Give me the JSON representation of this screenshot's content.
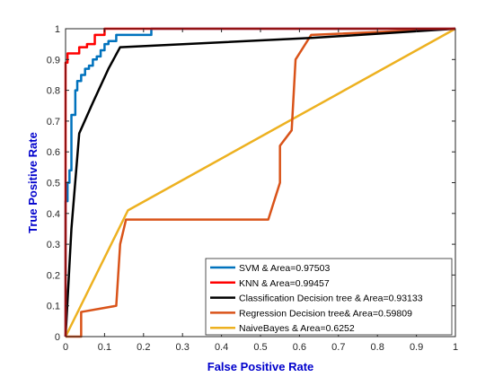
{
  "chart_data": {
    "type": "line",
    "title": "",
    "xlabel": "False Positive Rate",
    "ylabel": "True Positive Rate",
    "xlim": [
      0,
      1
    ],
    "ylim": [
      0,
      1
    ],
    "xticks": [
      "0",
      "0.1",
      "0.2",
      "0.3",
      "0.4",
      "0.5",
      "0.6",
      "0.7",
      "0.8",
      "0.9",
      "1"
    ],
    "yticks": [
      "0",
      "0.1",
      "0.2",
      "0.3",
      "0.4",
      "0.5",
      "0.6",
      "0.7",
      "0.8",
      "0.9",
      "1"
    ],
    "grid": false,
    "legend_position": "bottom-right",
    "series": [
      {
        "name": "SVM & Area=0.97503",
        "color": "#0072BD",
        "points": [
          [
            0,
            0
          ],
          [
            0,
            0.44
          ],
          [
            0.005,
            0.44
          ],
          [
            0.005,
            0.5
          ],
          [
            0.01,
            0.5
          ],
          [
            0.01,
            0.54
          ],
          [
            0.015,
            0.54
          ],
          [
            0.015,
            0.72
          ],
          [
            0.025,
            0.72
          ],
          [
            0.025,
            0.8
          ],
          [
            0.03,
            0.8
          ],
          [
            0.03,
            0.83
          ],
          [
            0.04,
            0.83
          ],
          [
            0.04,
            0.85
          ],
          [
            0.05,
            0.85
          ],
          [
            0.05,
            0.87
          ],
          [
            0.06,
            0.87
          ],
          [
            0.06,
            0.88
          ],
          [
            0.07,
            0.88
          ],
          [
            0.07,
            0.9
          ],
          [
            0.08,
            0.9
          ],
          [
            0.08,
            0.91
          ],
          [
            0.09,
            0.91
          ],
          [
            0.09,
            0.93
          ],
          [
            0.1,
            0.93
          ],
          [
            0.1,
            0.95
          ],
          [
            0.11,
            0.95
          ],
          [
            0.11,
            0.96
          ],
          [
            0.13,
            0.96
          ],
          [
            0.13,
            0.98
          ],
          [
            0.22,
            0.98
          ],
          [
            0.22,
            1
          ],
          [
            1,
            1
          ]
        ]
      },
      {
        "name": "KNN & Area=0.99457",
        "color": "#FF0000",
        "points": [
          [
            0,
            0
          ],
          [
            0,
            0.89
          ],
          [
            0.005,
            0.89
          ],
          [
            0.005,
            0.92
          ],
          [
            0.035,
            0.92
          ],
          [
            0.035,
            0.94
          ],
          [
            0.055,
            0.94
          ],
          [
            0.055,
            0.95
          ],
          [
            0.075,
            0.95
          ],
          [
            0.075,
            0.98
          ],
          [
            0.1,
            0.98
          ],
          [
            0.1,
            1
          ],
          [
            1,
            1
          ]
        ]
      },
      {
        "name": "Classification Decision tree & Area=0.93133",
        "color": "#000000",
        "points": [
          [
            0,
            0
          ],
          [
            0.015,
            0.35
          ],
          [
            0.035,
            0.66
          ],
          [
            0.07,
            0.76
          ],
          [
            0.11,
            0.87
          ],
          [
            0.14,
            0.94
          ],
          [
            0.63,
            0.97
          ],
          [
            1,
            1
          ]
        ]
      },
      {
        "name": "Regression Decision tree& Area=0.59809",
        "color": "#D95319",
        "points": [
          [
            0,
            0
          ],
          [
            0.04,
            0
          ],
          [
            0.04,
            0.08
          ],
          [
            0.13,
            0.1
          ],
          [
            0.14,
            0.3
          ],
          [
            0.155,
            0.38
          ],
          [
            0.52,
            0.38
          ],
          [
            0.55,
            0.5
          ],
          [
            0.55,
            0.62
          ],
          [
            0.58,
            0.67
          ],
          [
            0.59,
            0.9
          ],
          [
            0.63,
            0.98
          ],
          [
            1,
            1
          ]
        ]
      },
      {
        "name": "NaiveBayes & Area=0.6252",
        "color": "#EDB120",
        "points": [
          [
            0,
            0
          ],
          [
            0.16,
            0.41
          ],
          [
            1,
            1
          ]
        ]
      }
    ]
  }
}
